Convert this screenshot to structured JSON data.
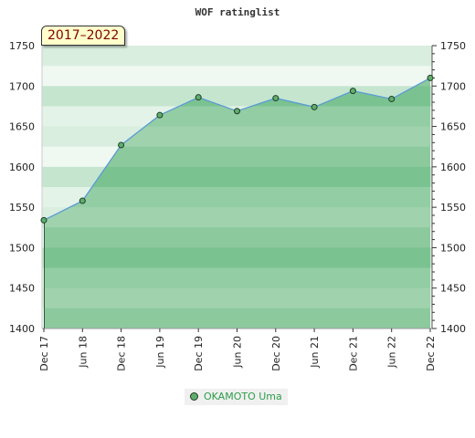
{
  "chart_data": {
    "type": "area",
    "title": "WOF ratinglist",
    "period_badge": "2017–2022",
    "x": [
      "Dec 17",
      "Jun 18",
      "Dec 18",
      "Jun 19",
      "Dec 19",
      "Jun 20",
      "Dec 20",
      "Jun 21",
      "Dec 21",
      "Jun 22",
      "Dec 22"
    ],
    "series": [
      {
        "name": "OKAMOTO Uma",
        "values": [
          1534,
          1558,
          1627,
          1664,
          1686,
          1669,
          1685,
          1674,
          1694,
          1684,
          1710
        ]
      }
    ],
    "ylim": [
      1400,
      1750
    ],
    "yticks": [
      1400,
      1450,
      1500,
      1550,
      1600,
      1650,
      1700,
      1750
    ],
    "grid": true,
    "legend_position": "bottom",
    "colors": {
      "area_fill": "#6fbf85",
      "line": "#5b9bd5",
      "marker_fill": "#5fae6e",
      "marker_stroke": "#1e3d24",
      "legend_text": "#2e9e4a",
      "badge_text": "#800000",
      "badge_bg": "#ffffcc"
    }
  }
}
